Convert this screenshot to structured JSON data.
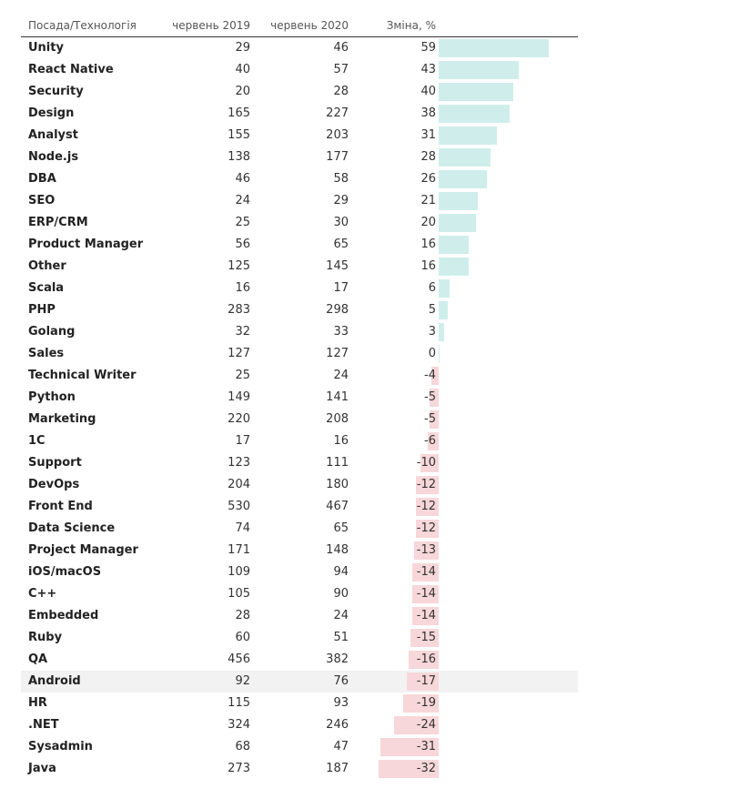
{
  "headers": {
    "name": "Посада/Технологія",
    "y2019": "червень 2019",
    "y2020": "червень 2020",
    "change": "Зміна, %"
  },
  "chart_data": {
    "type": "table",
    "title": "",
    "columns": [
      "Посада/Технологія",
      "червень 2019",
      "червень 2020",
      "Зміна, %"
    ],
    "rows": [
      {
        "name": "Unity",
        "y2019": 29,
        "y2020": 46,
        "change": 59
      },
      {
        "name": "React Native",
        "y2019": 40,
        "y2020": 57,
        "change": 43
      },
      {
        "name": "Security",
        "y2019": 20,
        "y2020": 28,
        "change": 40
      },
      {
        "name": "Design",
        "y2019": 165,
        "y2020": 227,
        "change": 38
      },
      {
        "name": "Analyst",
        "y2019": 155,
        "y2020": 203,
        "change": 31
      },
      {
        "name": "Node.js",
        "y2019": 138,
        "y2020": 177,
        "change": 28
      },
      {
        "name": "DBA",
        "y2019": 46,
        "y2020": 58,
        "change": 26
      },
      {
        "name": "SEO",
        "y2019": 24,
        "y2020": 29,
        "change": 21
      },
      {
        "name": "ERP/CRM",
        "y2019": 25,
        "y2020": 30,
        "change": 20
      },
      {
        "name": "Product Manager",
        "y2019": 56,
        "y2020": 65,
        "change": 16
      },
      {
        "name": "Other",
        "y2019": 125,
        "y2020": 145,
        "change": 16
      },
      {
        "name": "Scala",
        "y2019": 16,
        "y2020": 17,
        "change": 6
      },
      {
        "name": "PHP",
        "y2019": 283,
        "y2020": 298,
        "change": 5
      },
      {
        "name": "Golang",
        "y2019": 32,
        "y2020": 33,
        "change": 3
      },
      {
        "name": "Sales",
        "y2019": 127,
        "y2020": 127,
        "change": 0
      },
      {
        "name": "Technical Writer",
        "y2019": 25,
        "y2020": 24,
        "change": -4
      },
      {
        "name": "Python",
        "y2019": 149,
        "y2020": 141,
        "change": -5
      },
      {
        "name": "Marketing",
        "y2019": 220,
        "y2020": 208,
        "change": -5
      },
      {
        "name": "1C",
        "y2019": 17,
        "y2020": 16,
        "change": -6
      },
      {
        "name": "Support",
        "y2019": 123,
        "y2020": 111,
        "change": -10
      },
      {
        "name": "DevOps",
        "y2019": 204,
        "y2020": 180,
        "change": -12
      },
      {
        "name": "Front End",
        "y2019": 530,
        "y2020": 467,
        "change": -12
      },
      {
        "name": "Data Science",
        "y2019": 74,
        "y2020": 65,
        "change": -12
      },
      {
        "name": "Project Manager",
        "y2019": 171,
        "y2020": 148,
        "change": -13
      },
      {
        "name": "iOS/macOS",
        "y2019": 109,
        "y2020": 94,
        "change": -14
      },
      {
        "name": "C++",
        "y2019": 105,
        "y2020": 90,
        "change": -14
      },
      {
        "name": "Embedded",
        "y2019": 28,
        "y2020": 24,
        "change": -14
      },
      {
        "name": "Ruby",
        "y2019": 60,
        "y2020": 51,
        "change": -15
      },
      {
        "name": "QA",
        "y2019": 456,
        "y2020": 382,
        "change": -16
      },
      {
        "name": "Android",
        "y2019": 92,
        "y2020": 76,
        "change": -17,
        "highlight": true
      },
      {
        "name": "HR",
        "y2019": 115,
        "y2020": 93,
        "change": -19
      },
      {
        "name": ".NET",
        "y2019": 324,
        "y2020": 246,
        "change": -24
      },
      {
        "name": "Sysadmin",
        "y2019": 68,
        "y2020": 47,
        "change": -31
      },
      {
        "name": "Java",
        "y2019": 273,
        "y2020": 187,
        "change": -32
      }
    ],
    "colors": {
      "positive": "#cfeeeb",
      "negative": "#f7d7d9",
      "highlight_row": "#f2f2f2"
    }
  }
}
